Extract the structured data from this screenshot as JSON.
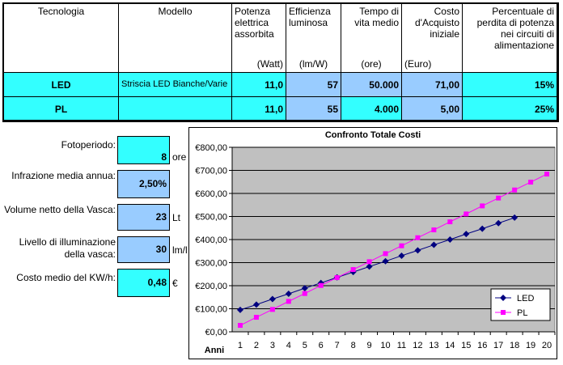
{
  "table": {
    "headers": [
      {
        "label": "Tecnologia"
      },
      {
        "label": "Modello"
      },
      {
        "label": "Potenza elettrica assorbita",
        "unit": "(Watt)"
      },
      {
        "label": "Efficienza luminosa",
        "unit": "(lm/W)"
      },
      {
        "label": "Tempo di vita medio",
        "unit": "(ore)"
      },
      {
        "label": "Costo d'Acquisto iniziale",
        "unit": "(Euro)"
      },
      {
        "label": "Percentuale di perdita di potenza nei circuiti di alimentazione"
      }
    ],
    "rows": [
      [
        "LED",
        "Striscia LED Bianche/Varie",
        "11,0",
        "57",
        "50.000",
        "71,00",
        "15%"
      ],
      [
        "PL",
        null,
        "11,0",
        "55",
        "4.000",
        "5,00",
        "25%"
      ]
    ]
  },
  "params": [
    {
      "label": "Fotoperiodo:",
      "value": "8",
      "unit": "ore"
    },
    {
      "label": "Infrazione media annua:",
      "value": "2,50%"
    },
    {
      "label": "Volume netto della Vasca:",
      "value": "23",
      "unit": "Lt"
    },
    {
      "label": "Livello di illuminazione della vasca:",
      "value": "30",
      "unit": "lm/l"
    },
    {
      "label": "Costo medio del KW/h:",
      "value": "0,48",
      "unit": "€"
    }
  ],
  "chart_data": {
    "type": "line",
    "title": "Confronto Totale Costi",
    "x_label": "Anni",
    "x": [
      1,
      2,
      3,
      4,
      5,
      6,
      7,
      8,
      9,
      10,
      11,
      12,
      13,
      14,
      15,
      16,
      17,
      18,
      19,
      20
    ],
    "series": [
      {
        "name": "LED",
        "color": "#000080",
        "marker": "diamond",
        "values": [
          95,
          118,
          142,
          165,
          189,
          212,
          236,
          259,
          283,
          306,
          330,
          353,
          377,
          400,
          424,
          447,
          471,
          495,
          null,
          null
        ]
      },
      {
        "name": "PL",
        "color": "#ff00ff",
        "marker": "square",
        "values": [
          28,
          63,
          97,
          132,
          166,
          201,
          235,
          270,
          304,
          339,
          373,
          408,
          442,
          477,
          511,
          546,
          580,
          615,
          649,
          684
        ]
      }
    ],
    "ylim": [
      0,
      800
    ],
    "yticks": [
      {
        "value": 0,
        "label": "€0,00"
      },
      {
        "value": 100,
        "label": "€100,00"
      },
      {
        "value": 200,
        "label": "€200,00"
      },
      {
        "value": 300,
        "label": "€300,00"
      },
      {
        "value": 400,
        "label": "€400,00"
      },
      {
        "value": 500,
        "label": "€500,00"
      },
      {
        "value": 600,
        "label": "€600,00"
      },
      {
        "value": 700,
        "label": "€700,00"
      },
      {
        "value": 800,
        "label": "€800,00"
      }
    ],
    "grid": true,
    "legend": "lower right"
  }
}
